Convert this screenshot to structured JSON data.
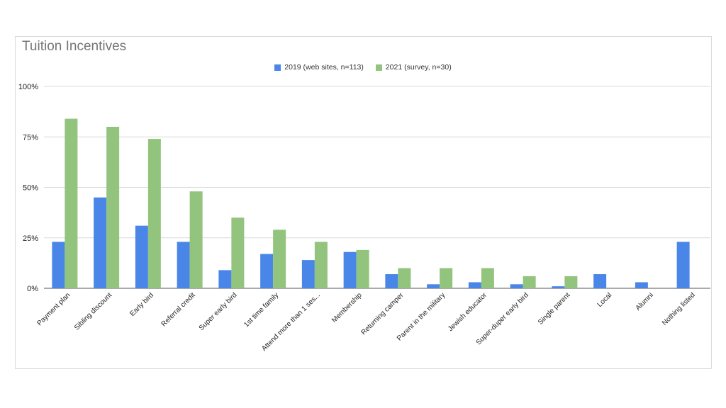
{
  "chart_data": {
    "type": "bar",
    "title": "Tuition Incentives",
    "xlabel": "",
    "ylabel": "",
    "ylim": [
      0,
      100
    ],
    "yticks": [
      "0%",
      "25%",
      "50%",
      "75%",
      "100%"
    ],
    "legend_position": "top-center",
    "grid": true,
    "categories": [
      "Payment plan",
      "Sibling discount",
      "Early bird",
      "Referral credit",
      "Super early bird",
      "1st time family",
      "Attend more than 1 ses...",
      "Membership",
      "Returning camper",
      "Parent in the military",
      "Jewish educator",
      "Super-duper early bird",
      "Single parent",
      "Local",
      "Alumni",
      "Nothing listed"
    ],
    "series": [
      {
        "name": "2019 (web sites, n=113)",
        "color": "#4a86e8",
        "values": [
          23,
          45,
          31,
          23,
          9,
          17,
          14,
          18,
          7,
          2,
          3,
          2,
          1,
          7,
          3,
          23
        ]
      },
      {
        "name": "2021 (survey, n=30)",
        "color": "#93c47d",
        "values": [
          84,
          80,
          74,
          48,
          35,
          29,
          23,
          19,
          10,
          10,
          10,
          6,
          6,
          0,
          0,
          0
        ]
      }
    ]
  }
}
